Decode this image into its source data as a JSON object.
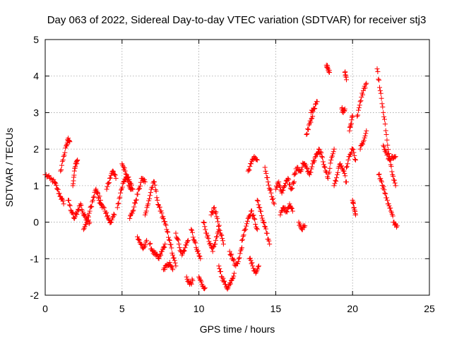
{
  "chart_data": {
    "type": "scatter",
    "title": "Day 063 of 2022, Sidereal Day-to-day VTEC variation (SDTVAR) for receiver stj3",
    "xlabel": "GPS time / hours",
    "ylabel": "SDTVAR / TECUs",
    "xlim": [
      0,
      25
    ],
    "ylim": [
      -2,
      5
    ],
    "xticks": [
      "0",
      "5",
      "10",
      "15",
      "20",
      "25"
    ],
    "yticks": [
      "-2",
      "-1",
      "0",
      "1",
      "2",
      "3",
      "4",
      "5"
    ],
    "grid": true,
    "marker": "plus",
    "marker_color": "#ff0000",
    "series": [
      {
        "name": "SDTVAR",
        "segments": [
          {
            "x": [
              0.0,
              0.3,
              0.6,
              0.8,
              1.0,
              1.2
            ],
            "y": [
              1.3,
              1.2,
              1.1,
              0.9,
              0.7,
              0.5
            ]
          },
          {
            "x": [
              1.0,
              1.2,
              1.4,
              1.5,
              1.6
            ],
            "y": [
              1.4,
              1.8,
              2.1,
              2.3,
              2.2
            ]
          },
          {
            "x": [
              1.5,
              1.7,
              1.9,
              2.1,
              2.3,
              2.5,
              2.7,
              2.9
            ],
            "y": [
              0.6,
              0.3,
              0.1,
              0.3,
              0.5,
              0.2,
              0.1,
              0.0
            ]
          },
          {
            "x": [
              1.8,
              1.9,
              2.0,
              2.1
            ],
            "y": [
              1.0,
              1.4,
              1.6,
              1.7
            ]
          },
          {
            "x": [
              2.5,
              2.7,
              2.9,
              3.1,
              3.3,
              3.5,
              3.7
            ],
            "y": [
              -0.2,
              0.0,
              0.3,
              0.6,
              0.9,
              0.6,
              0.4
            ]
          },
          {
            "x": [
              3.3,
              3.6,
              3.9,
              4.1,
              4.3,
              4.5
            ],
            "y": [
              0.9,
              0.6,
              0.3,
              0.1,
              0.0,
              0.2
            ]
          },
          {
            "x": [
              4.0,
              4.2,
              4.4,
              4.6
            ],
            "y": [
              0.9,
              1.2,
              1.4,
              1.2
            ]
          },
          {
            "x": [
              4.7,
              4.9,
              5.1,
              5.3,
              5.5,
              5.7
            ],
            "y": [
              0.4,
              0.8,
              1.1,
              1.3,
              1.1,
              0.9
            ]
          },
          {
            "x": [
              5.0,
              5.2,
              5.4,
              5.6
            ],
            "y": [
              1.6,
              1.4,
              1.1,
              0.9
            ]
          },
          {
            "x": [
              5.5,
              5.7,
              5.9,
              6.1,
              6.3,
              6.5
            ],
            "y": [
              0.1,
              0.3,
              0.6,
              0.9,
              1.2,
              1.1
            ]
          },
          {
            "x": [
              6.0,
              6.2,
              6.4,
              6.6
            ],
            "y": [
              -0.4,
              -0.6,
              -0.7,
              -0.5
            ]
          },
          {
            "x": [
              6.5,
              6.7,
              6.9,
              7.1,
              7.3,
              7.5
            ],
            "y": [
              0.2,
              0.5,
              0.9,
              1.1,
              0.6,
              0.3
            ]
          },
          {
            "x": [
              6.8,
              7.0,
              7.2,
              7.4,
              7.6,
              7.8
            ],
            "y": [
              -0.6,
              -0.8,
              -0.9,
              -1.0,
              -0.8,
              -0.6
            ]
          },
          {
            "x": [
              7.5,
              7.7,
              7.9,
              8.1,
              8.3,
              8.5
            ],
            "y": [
              0.3,
              0.1,
              -0.2,
              -0.5,
              -0.9,
              -1.2
            ]
          },
          {
            "x": [
              7.7,
              7.9,
              8.1,
              8.3
            ],
            "y": [
              -1.3,
              -1.2,
              -1.1,
              -1.3
            ]
          },
          {
            "x": [
              8.5,
              8.7,
              8.9,
              9.1,
              9.3
            ],
            "y": [
              -0.3,
              -0.6,
              -0.9,
              -0.7,
              -0.5
            ]
          },
          {
            "x": [
              9.2,
              9.4,
              9.6
            ],
            "y": [
              -1.5,
              -1.7,
              -1.6
            ]
          },
          {
            "x": [
              9.5,
              9.7,
              9.9,
              10.1
            ],
            "y": [
              -0.2,
              -0.5,
              -0.8,
              -1.0
            ]
          },
          {
            "x": [
              10.0,
              10.2,
              10.4
            ],
            "y": [
              -1.5,
              -1.7,
              -1.8
            ]
          },
          {
            "x": [
              10.3,
              10.5,
              10.7,
              10.9,
              11.1,
              11.3
            ],
            "y": [
              0.0,
              -0.3,
              -0.6,
              -0.8,
              -0.5,
              -0.2
            ]
          },
          {
            "x": [
              10.8,
              11.0,
              11.2,
              11.4,
              11.6
            ],
            "y": [
              0.2,
              0.4,
              0.1,
              -0.3,
              -0.6
            ]
          },
          {
            "x": [
              11.3,
              11.5,
              11.7,
              11.9,
              12.1,
              12.3
            ],
            "y": [
              -1.2,
              -1.5,
              -1.7,
              -1.8,
              -1.6,
              -1.4
            ]
          },
          {
            "x": [
              12.0,
              12.2,
              12.4,
              12.6,
              12.8
            ],
            "y": [
              -0.8,
              -1.0,
              -1.2,
              -1.0,
              -0.7
            ]
          },
          {
            "x": [
              12.8,
              13.0,
              13.2,
              13.4,
              13.6,
              13.8
            ],
            "y": [
              -0.5,
              -0.2,
              0.1,
              0.3,
              0.1,
              -0.2
            ]
          },
          {
            "x": [
              13.3,
              13.5,
              13.7,
              13.9
            ],
            "y": [
              -1.0,
              -1.2,
              -1.4,
              -1.2
            ]
          },
          {
            "x": [
              13.2,
              13.4,
              13.6,
              13.8
            ],
            "y": [
              1.4,
              1.6,
              1.8,
              1.7
            ]
          },
          {
            "x": [
              13.8,
              14.0,
              14.2,
              14.4,
              14.6
            ],
            "y": [
              0.6,
              0.3,
              0.0,
              -0.3,
              -0.6
            ]
          },
          {
            "x": [
              14.3,
              14.5,
              14.7,
              14.9
            ],
            "y": [
              1.5,
              1.1,
              0.8,
              0.5
            ]
          },
          {
            "x": [
              15.0,
              15.2,
              15.4,
              15.6,
              15.8,
              16.0,
              16.2
            ],
            "y": [
              0.9,
              1.1,
              0.8,
              1.0,
              1.2,
              0.9,
              1.1
            ]
          },
          {
            "x": [
              15.3,
              15.5,
              15.7,
              15.9,
              16.1
            ],
            "y": [
              0.2,
              0.4,
              0.3,
              0.5,
              0.3
            ]
          },
          {
            "x": [
              16.2,
              16.4,
              16.6,
              16.8,
              17.0
            ],
            "y": [
              1.3,
              1.5,
              1.4,
              1.6,
              1.5
            ]
          },
          {
            "x": [
              16.5,
              16.7,
              16.9
            ],
            "y": [
              0.0,
              -0.2,
              -0.1
            ]
          },
          {
            "x": [
              17.0,
              17.2,
              17.4,
              17.6,
              17.8
            ],
            "y": [
              1.5,
              1.3,
              1.6,
              1.8,
              1.9
            ]
          },
          {
            "x": [
              17.0,
              17.2,
              17.4
            ],
            "y": [
              2.4,
              2.7,
              2.9
            ]
          },
          {
            "x": [
              17.3,
              17.5,
              17.7
            ],
            "y": [
              3.0,
              3.1,
              3.3
            ]
          },
          {
            "x": [
              17.8,
              18.0,
              18.2,
              18.4,
              18.6,
              18.8
            ],
            "y": [
              2.0,
              1.8,
              1.5,
              1.2,
              1.7,
              2.0
            ]
          },
          {
            "x": [
              18.3,
              18.4,
              18.5
            ],
            "y": [
              4.3,
              4.2,
              4.1
            ]
          },
          {
            "x": [
              18.8,
              19.0,
              19.2,
              19.4,
              19.6
            ],
            "y": [
              1.0,
              1.3,
              1.6,
              1.4,
              1.1
            ]
          },
          {
            "x": [
              19.3,
              19.4,
              19.5
            ],
            "y": [
              3.1,
              3.0,
              3.1
            ]
          },
          {
            "x": [
              19.5,
              19.6
            ],
            "y": [
              4.1,
              3.9
            ]
          },
          {
            "x": [
              19.6,
              19.8,
              20.0,
              20.2
            ],
            "y": [
              1.5,
              1.8,
              2.0,
              1.7
            ]
          },
          {
            "x": [
              19.8,
              19.9,
              20.0
            ],
            "y": [
              2.5,
              2.7,
              2.9
            ]
          },
          {
            "x": [
              20.0,
              20.1,
              20.2
            ],
            "y": [
              0.6,
              0.4,
              0.2
            ]
          },
          {
            "x": [
              20.3,
              20.5,
              20.7,
              20.9
            ],
            "y": [
              2.9,
              3.3,
              3.6,
              3.8
            ]
          },
          {
            "x": [
              20.5,
              20.7,
              20.9
            ],
            "y": [
              2.0,
              2.2,
              2.5
            ]
          },
          {
            "x": [
              21.6,
              21.8,
              22.0,
              22.2,
              22.4,
              22.6,
              22.8
            ],
            "y": [
              4.2,
              3.6,
              3.0,
              2.4,
              1.8,
              1.3,
              1.0
            ]
          },
          {
            "x": [
              21.7,
              21.9,
              22.1,
              22.3,
              22.5,
              22.7,
              22.9
            ],
            "y": [
              1.3,
              1.1,
              0.8,
              0.5,
              0.3,
              0.0,
              -0.1
            ]
          },
          {
            "x": [
              22.0,
              22.2,
              22.4,
              22.6,
              22.8
            ],
            "y": [
              2.1,
              1.9,
              1.7,
              1.8,
              1.8
            ]
          }
        ]
      }
    ]
  }
}
